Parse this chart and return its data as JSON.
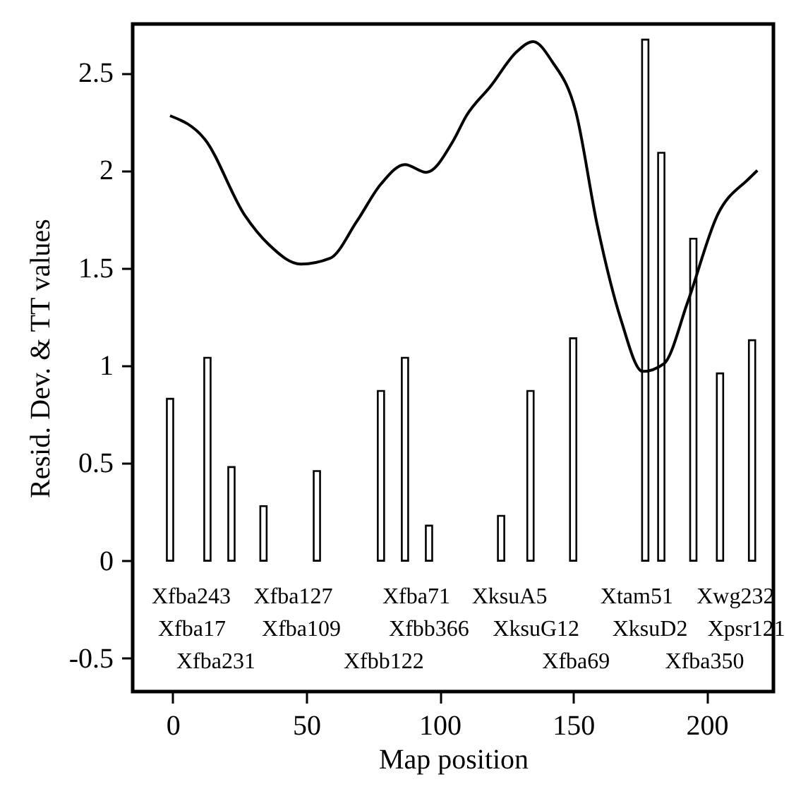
{
  "chart_data": {
    "type": "bar",
    "xlabel": "Map position",
    "ylabel": "Resid. Dev. & TT values",
    "xlim": [
      -15,
      225
    ],
    "ylim": [
      -0.67,
      2.75
    ],
    "xticks": [
      0,
      50,
      100,
      150,
      200
    ],
    "yticks": [
      -0.5,
      0,
      0.5,
      1,
      1.5,
      2,
      2.5
    ],
    "grid": false,
    "series": [
      {
        "color": "#ffffff",
        "x": [
          -1,
          13,
          22,
          34,
          54,
          78,
          87,
          96,
          123,
          134,
          150,
          177,
          183,
          195,
          205,
          217
        ],
        "values": [
          0.83,
          1.04,
          0.48,
          0.28,
          0.46,
          0.87,
          1.04,
          0.18,
          0.23,
          0.87,
          1.14,
          2.67,
          2.09,
          1.65,
          0.96,
          1.13
        ]
      },
      {
        "type": "line",
        "color": "#000000",
        "marker": "none",
        "line_style": "solid",
        "x": [
          -1,
          12,
          27,
          36,
          48,
          59,
          69,
          78,
          87,
          95,
          105,
          110,
          119,
          129,
          135,
          142,
          151,
          159,
          168,
          176,
          184,
          193,
          204,
          216,
          219
        ],
        "values": [
          2.28,
          2.16,
          1.77,
          1.62,
          1.52,
          1.55,
          1.74,
          1.93,
          2.03,
          1.99,
          2.15,
          2.28,
          2.43,
          2.61,
          2.66,
          2.56,
          2.3,
          1.72,
          1.23,
          0.97,
          1.01,
          1.33,
          1.77,
          1.96,
          2.0
        ]
      }
    ],
    "annotations": [
      "Xfba243",
      "Xfba17",
      "Xfba231",
      "Xfba127",
      "Xfba109",
      "Xfbb122",
      "Xfba71",
      "Xfbb366",
      "XksuA5",
      "XksuG12",
      "Xfba69",
      "Xtam51",
      "XksuD2",
      "Xfba350",
      "Xwg232",
      "Xpsr121"
    ]
  }
}
